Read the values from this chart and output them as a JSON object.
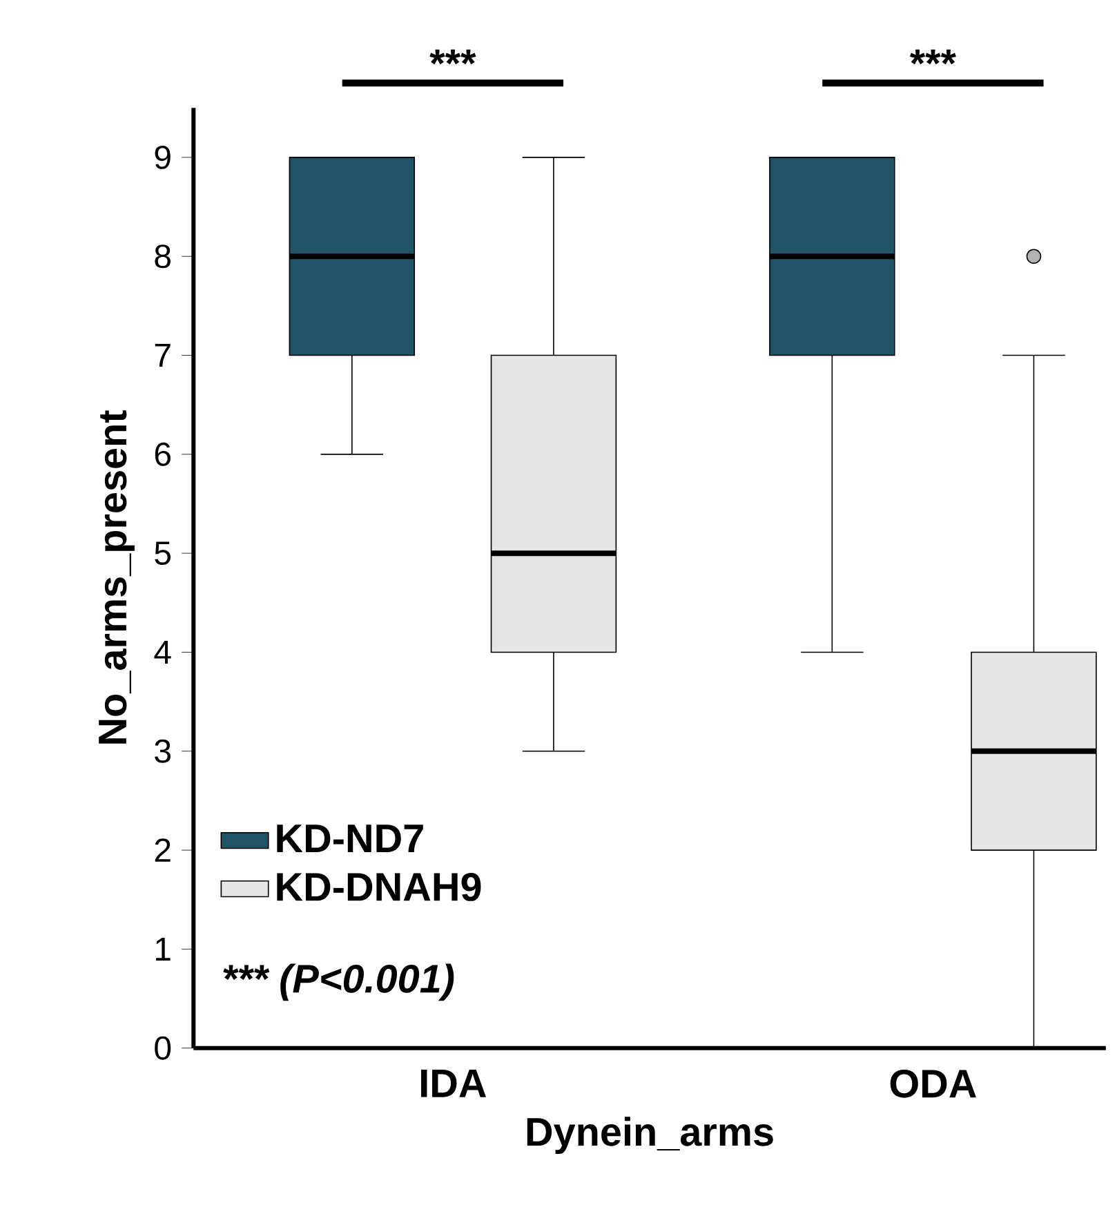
{
  "chart_data": {
    "type": "box",
    "categories": [
      "IDA",
      "ODA"
    ],
    "xlabel": "Dynein_arms",
    "ylabel": "No_arms_present",
    "ylim": [
      0,
      9.5
    ],
    "yticks": [
      0,
      1,
      2,
      3,
      4,
      5,
      6,
      7,
      8,
      9
    ],
    "legend": "bottom left",
    "grid": false,
    "series": [
      {
        "name": "KD-ND7",
        "color": "#1f5468",
        "boxes": [
          {
            "low": 6,
            "q1": 7,
            "median": 8,
            "q3": 9,
            "high": 9
          },
          {
            "low": 4,
            "q1": 7,
            "median": 8,
            "q3": 9,
            "high": 9
          }
        ]
      },
      {
        "name": "KD-DNAH9",
        "color": "#e6e6e6",
        "boxes": [
          {
            "low": 3,
            "q1": 4,
            "median": 5,
            "q3": 7,
            "high": 9
          },
          {
            "low": 0,
            "q1": 2,
            "median": 3,
            "q3": 4,
            "high": 7,
            "outliers": [
              8
            ]
          }
        ]
      }
    ],
    "annotations": [
      "***",
      "***",
      "*** (P<0.001)"
    ]
  }
}
